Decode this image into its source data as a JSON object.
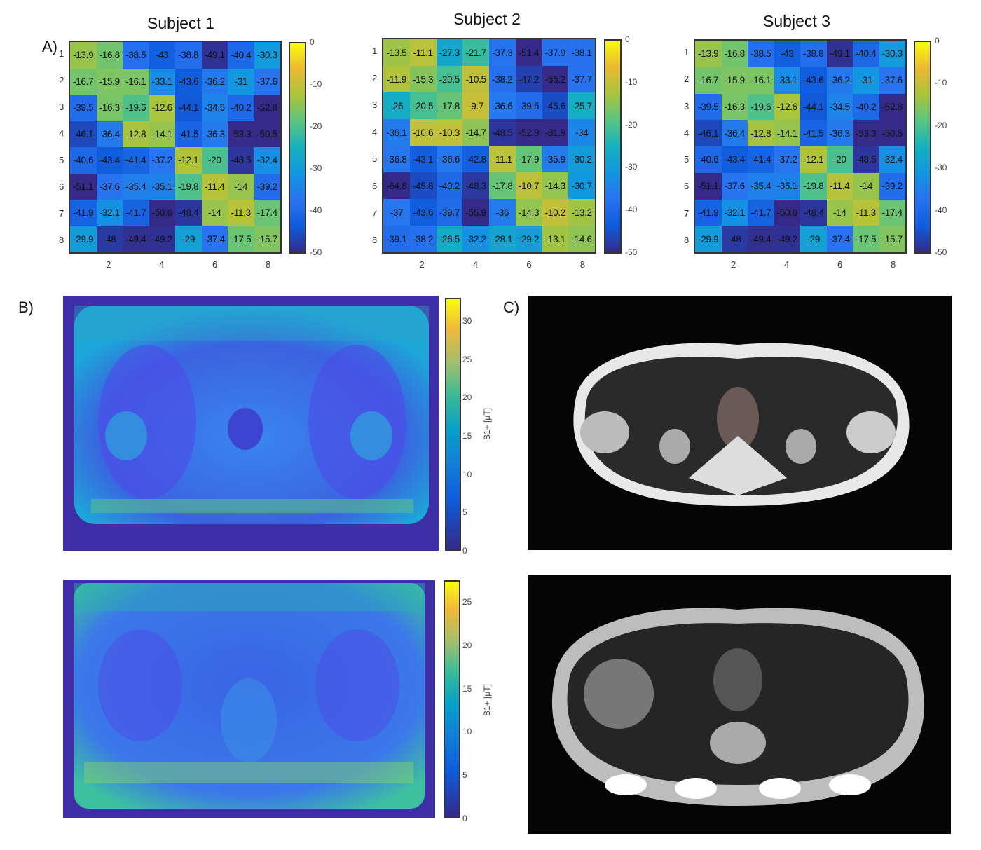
{
  "panel_labels": {
    "a": "A)",
    "b": "B)",
    "c": "C)"
  },
  "chart_data": [
    {
      "type": "heatmap",
      "title": "Subject 1",
      "row_labels": [
        "1",
        "2",
        "3",
        "4",
        "5",
        "6",
        "7",
        "8"
      ],
      "x_tick_labels": [
        "2",
        "4",
        "6",
        "8"
      ],
      "colorbar": {
        "range": [
          -50,
          0
        ],
        "tick_labels": [
          "0",
          "-10",
          "-20",
          "-30",
          "-40",
          "-50"
        ]
      },
      "values": [
        [
          "-13.9",
          "-16.8",
          "-38.5",
          "-43",
          "-38.8",
          "-49.1",
          "-40.4",
          "-30.3"
        ],
        [
          "-16.7",
          "-15.9",
          "-16.1",
          "-33.1",
          "-43.6",
          "-36.2",
          "-31",
          "-37.6"
        ],
        [
          "-39.5",
          "-16.3",
          "-19.6",
          "-12.6",
          "-44.1",
          "-34.5",
          "-40.2",
          "-52.8"
        ],
        [
          "-46.1",
          "-36.4",
          "-12.8",
          "-14.1",
          "-41.5",
          "-36.3",
          "-53.3",
          "-50.5"
        ],
        [
          "-40.6",
          "-43.4",
          "-41.4",
          "-37.2",
          "-12.1",
          "-20",
          "-48.5",
          "-32.4"
        ],
        [
          "-51.1",
          "-37.6",
          "-35.4",
          "-35.1",
          "-19.8",
          "-11.4",
          "-14",
          "-39.2"
        ],
        [
          "-41.9",
          "-32.1",
          "-41.7",
          "-50.6",
          "-48.4",
          "-14",
          "-11.3",
          "-17.4"
        ],
        [
          "-29.9",
          "-48",
          "-49.4",
          "-49.2",
          "-29",
          "-37.4",
          "-17.5",
          "-15.7"
        ]
      ]
    },
    {
      "type": "heatmap",
      "title": "Subject 2",
      "row_labels": [
        "1",
        "2",
        "3",
        "4",
        "5",
        "6",
        "7",
        "8"
      ],
      "x_tick_labels": [
        "2",
        "4",
        "6",
        "8"
      ],
      "colorbar": {
        "range": [
          -50,
          0
        ],
        "tick_labels": [
          "0",
          "-10",
          "-20",
          "-30",
          "-40",
          "-50"
        ]
      },
      "values": [
        [
          "-13.5",
          "-11.1",
          "-27.3",
          "-21.7",
          "-37.3",
          "-51.4",
          "-37.9",
          "-38.1"
        ],
        [
          "-11.9",
          "-15.3",
          "-20.5",
          "-10.5",
          "-38.2",
          "-47.2",
          "-55.2",
          "-37.7"
        ],
        [
          "-26",
          "-20.5",
          "-17.8",
          "-9.7",
          "-36.6",
          "-39.5",
          "-45.6",
          "-25.7"
        ],
        [
          "-36.1",
          "-10.6",
          "-10.3",
          "-14.7",
          "-48.5",
          "-52.9",
          "-81.9",
          "-34"
        ],
        [
          "-36.8",
          "-43.1",
          "-36.6",
          "-42.8",
          "-11.1",
          "-17.9",
          "-35.9",
          "-30.2"
        ],
        [
          "-64.8",
          "-45.8",
          "-40.2",
          "-48.3",
          "-17.8",
          "-10.7",
          "-14.3",
          "-30.7"
        ],
        [
          "-37",
          "-43.6",
          "-39.7",
          "-55.9",
          "-36",
          "-14.3",
          "-10.2",
          "-13.2"
        ],
        [
          "-39.1",
          "-38.2",
          "-26.5",
          "-32.2",
          "-28.1",
          "-29.2",
          "-13.1",
          "-14.6"
        ]
      ]
    },
    {
      "type": "heatmap",
      "title": "Subject 3",
      "row_labels": [
        "1",
        "2",
        "3",
        "4",
        "5",
        "6",
        "7",
        "8"
      ],
      "x_tick_labels": [
        "2",
        "4",
        "6",
        "8"
      ],
      "colorbar": {
        "range": [
          -50,
          0
        ],
        "tick_labels": [
          "0",
          "-10",
          "-20",
          "-30",
          "-40",
          "-50"
        ]
      },
      "values": [
        [
          "-13.9",
          "-16.8",
          "-38.5",
          "-43",
          "-38.8",
          "-49.1",
          "-40.4",
          "-30.3"
        ],
        [
          "-16.7",
          "-15.9",
          "-16.1",
          "-33.1",
          "-43.6",
          "-36.2",
          "-31",
          "-37.6"
        ],
        [
          "-39.5",
          "-16.3",
          "-19.6",
          "-12.6",
          "-44.1",
          "-34.5",
          "-40.2",
          "-52.8"
        ],
        [
          "-46.1",
          "-36.4",
          "-12.8",
          "-14.1",
          "-41.5",
          "-36.3",
          "-53.3",
          "-50.5"
        ],
        [
          "-40.6",
          "-43.4",
          "-41.4",
          "-37.2",
          "-12.1",
          "-20",
          "-48.5",
          "-32.4"
        ],
        [
          "-51.1",
          "-37.6",
          "-35.4",
          "-35.1",
          "-19.8",
          "-11.4",
          "-14",
          "-39.2"
        ],
        [
          "-41.9",
          "-32.1",
          "-41.7",
          "-50.6",
          "-48.4",
          "-14",
          "-11.3",
          "-17.4"
        ],
        [
          "-29.9",
          "-48",
          "-49.4",
          "-49.2",
          "-29",
          "-37.4",
          "-17.5",
          "-15.7"
        ]
      ]
    }
  ],
  "b1_maps": [
    {
      "colorbar_range": [
        0,
        33
      ],
      "tick_labels": [
        "0",
        "5",
        "10",
        "15",
        "20",
        "25",
        "30"
      ],
      "unit_label": "B1+ [μT]"
    },
    {
      "colorbar_range": [
        0,
        27.5
      ],
      "tick_labels": [
        "0",
        "5",
        "10",
        "15",
        "20",
        "25"
      ],
      "unit_label": "B1+ [μT]"
    }
  ],
  "colors": {
    "background_blue": "#3e2fa6",
    "tissue_blue": "#3b6fe6"
  }
}
